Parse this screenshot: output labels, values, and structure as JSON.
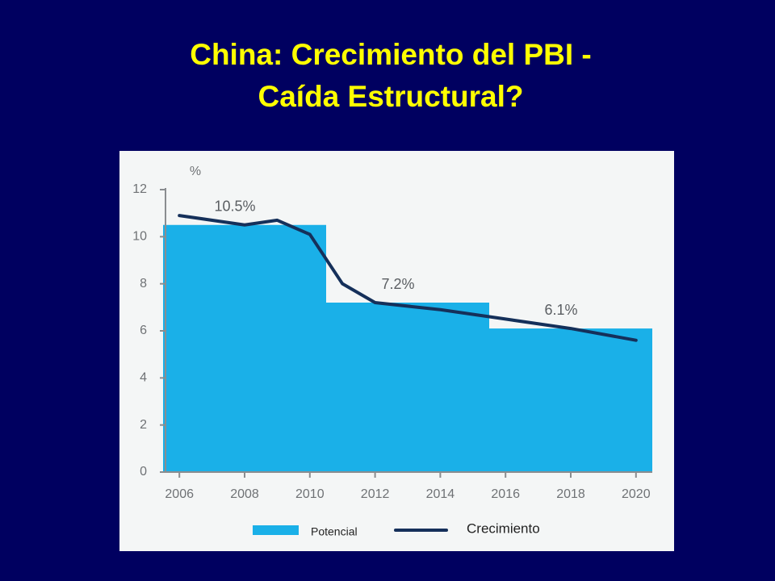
{
  "chart_data": {
    "type": "bar-line",
    "title": [
      "China: Crecimiento del PBI -",
      "Caída Estructural?"
    ],
    "ylabel": "%",
    "xlim": [
      2005.5,
      2020.5
    ],
    "xticks": [
      2006,
      2008,
      2010,
      2012,
      2014,
      2016,
      2018,
      2020
    ],
    "ylim": [
      0,
      12
    ],
    "yticks": [
      0,
      2,
      4,
      6,
      8,
      10,
      12
    ],
    "legend": "bottom",
    "series": [
      {
        "name": "Potencial",
        "type": "bar",
        "color": "#1ab0e8",
        "bins": [
          2005.5,
          2010.5,
          2015.5,
          2020.5
        ],
        "values": [
          10.5,
          7.2,
          6.1
        ],
        "value_labels": [
          "10.5%",
          "7.2%",
          "6.1%"
        ]
      },
      {
        "name": "Crecimiento",
        "type": "line",
        "color": "#15305a",
        "x": [
          2006,
          2008,
          2009,
          2010,
          2011,
          2012,
          2014,
          2016,
          2018,
          2020
        ],
        "values": [
          10.9,
          10.5,
          10.7,
          10.1,
          8.0,
          7.2,
          6.9,
          6.5,
          6.1,
          5.6
        ]
      }
    ]
  }
}
